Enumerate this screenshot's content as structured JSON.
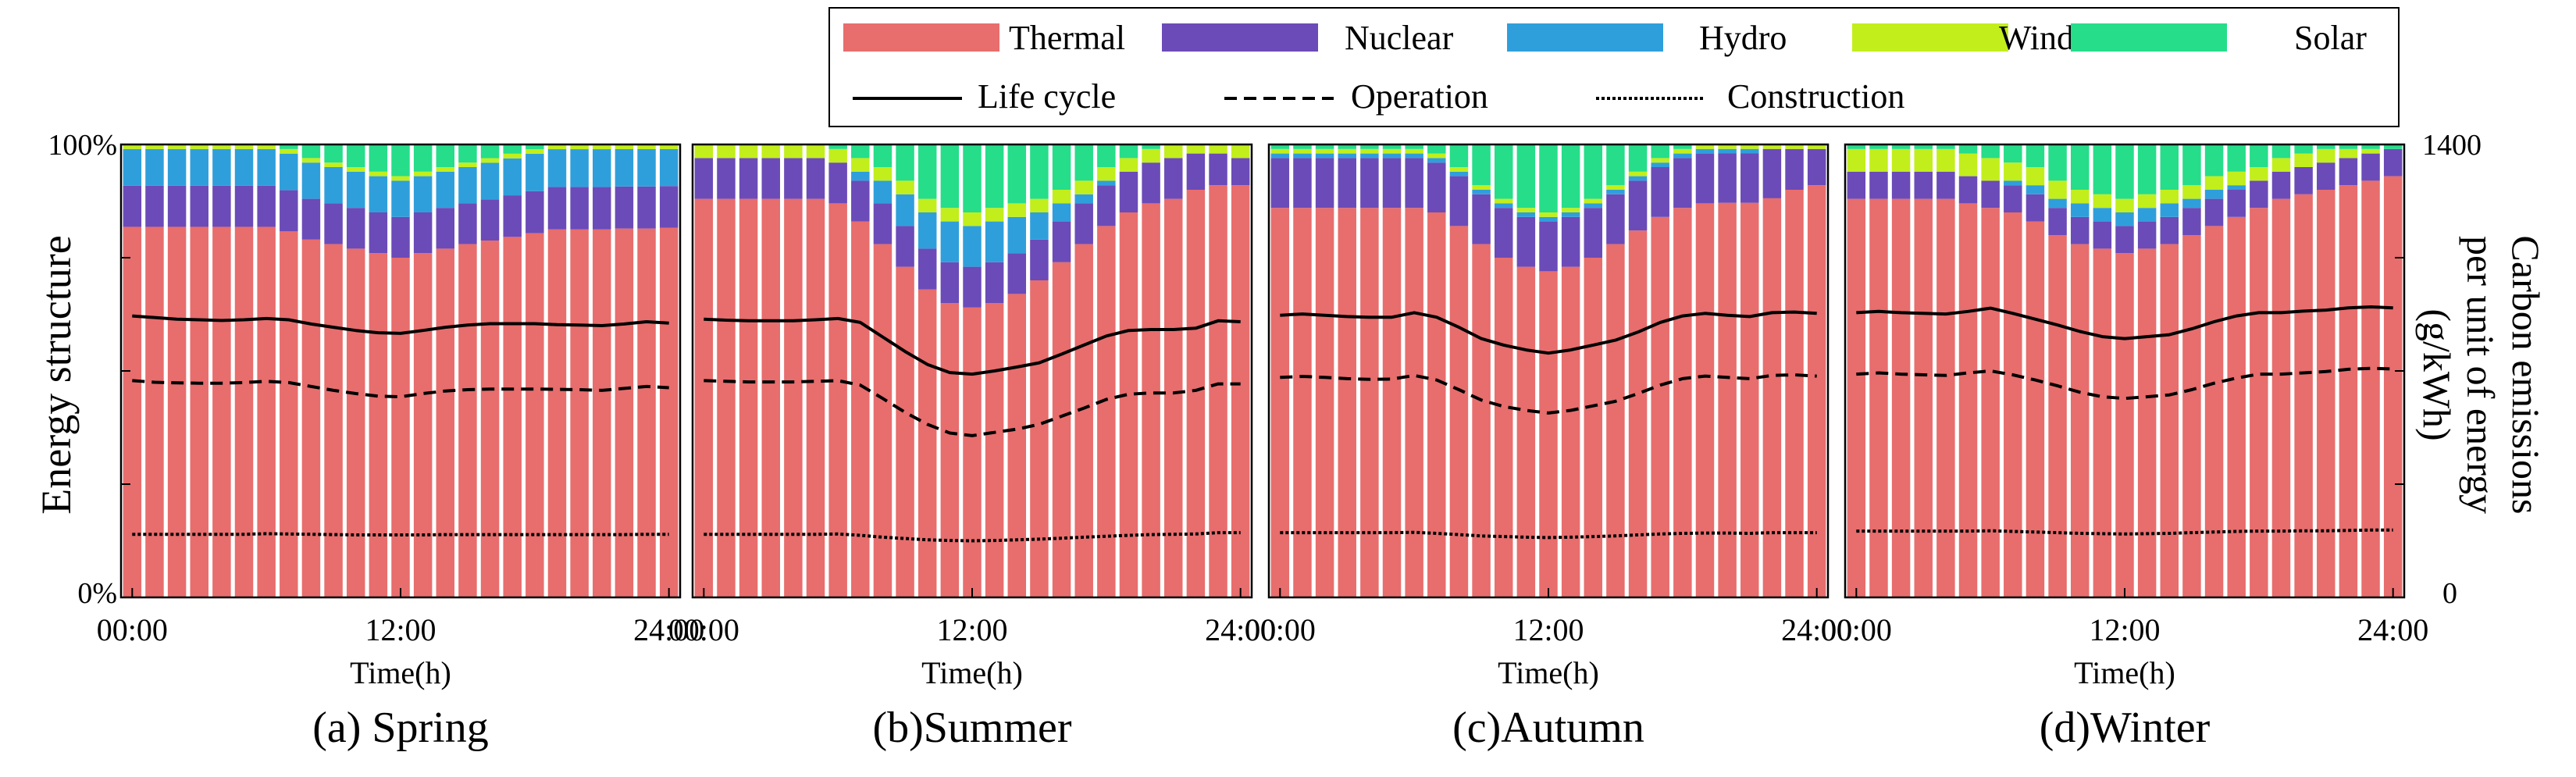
{
  "chart_data": {
    "type": "stacked-bar-with-lines",
    "y_left_label": "Energy structure",
    "y_left_ticks": [
      "100%",
      "0%"
    ],
    "y_right_label_line1": "Carbon emissions",
    "y_right_label_line2": "per unit of energy",
    "y_right_label_line3": "(g/kWh)",
    "y_right_ticks": [
      "1400",
      "0"
    ],
    "y_right_range": [
      0,
      1400
    ],
    "xlabel": "Time(h)",
    "x_tick_labels": [
      "00:00",
      "12:00",
      "24:00"
    ],
    "x_tick_hours": [
      0,
      12,
      24
    ],
    "hours": [
      0,
      1,
      2,
      3,
      4,
      5,
      6,
      7,
      8,
      9,
      10,
      11,
      12,
      13,
      14,
      15,
      16,
      17,
      18,
      19,
      20,
      21,
      22,
      23,
      24
    ],
    "legend": {
      "bars": [
        {
          "name": "Thermal",
          "color": "#e86d6d"
        },
        {
          "name": "Nuclear",
          "color": "#6b4bb8"
        },
        {
          "name": "Hydro",
          "color": "#2f9fdb"
        },
        {
          "name": "Wind",
          "color": "#c2ee1c"
        },
        {
          "name": "Solar",
          "color": "#26dd8a"
        }
      ],
      "lines": [
        {
          "name": "Life cycle",
          "style": "solid"
        },
        {
          "name": "Operation",
          "style": "dashed"
        },
        {
          "name": "Construction",
          "style": "dotted"
        }
      ]
    },
    "panels": [
      {
        "title": "(a) Spring",
        "series": {
          "Thermal": [
            81,
            81,
            81,
            81,
            81,
            81,
            81,
            80,
            79,
            78,
            77,
            76,
            75,
            76,
            77,
            78,
            78,
            78,
            78,
            78,
            78,
            78,
            79,
            79,
            80
          ],
          "Nuclear": [
            9,
            9,
            9,
            9,
            9,
            9,
            9,
            9,
            9,
            9,
            9,
            9,
            9,
            9,
            9,
            9,
            9,
            9,
            9,
            9,
            9,
            9,
            9,
            9,
            9
          ],
          "Hydro": [
            8,
            8,
            8,
            8,
            8,
            8,
            8,
            8,
            8,
            8,
            8,
            8,
            8,
            8,
            8,
            8,
            8,
            8,
            8,
            8,
            8,
            8,
            8,
            8,
            8
          ],
          "Wind": [
            1,
            1,
            1,
            1,
            1,
            1,
            1,
            1,
            1,
            1,
            1,
            1,
            1,
            1,
            1,
            1,
            1,
            1,
            1,
            1,
            1,
            1,
            1,
            1,
            1
          ],
          "Solar": [
            0,
            0,
            0,
            0,
            0,
            0,
            0,
            1,
            3,
            4,
            5,
            6,
            7,
            6,
            5,
            4,
            3,
            2,
            1,
            0,
            0,
            0,
            0,
            0,
            0
          ]
        },
        "life_cycle": [
          870,
          865,
          860,
          858,
          856,
          858,
          862,
          858,
          845,
          835,
          825,
          818,
          816,
          825,
          835,
          842,
          846,
          846,
          846,
          843,
          842,
          840,
          845,
          852,
          848
        ],
        "operation": [
          670,
          665,
          663,
          662,
          662,
          664,
          668,
          664,
          652,
          640,
          630,
          622,
          620,
          630,
          638,
          642,
          644,
          644,
          644,
          643,
          642,
          640,
          646,
          652,
          648
        ],
        "construction": [
          195,
          195,
          195,
          195,
          195,
          195,
          197,
          196,
          195,
          194,
          193,
          193,
          193,
          193,
          194,
          194,
          194,
          194,
          194,
          194,
          194,
          194,
          194,
          195,
          195
        ]
      },
      {
        "title": "(b)Summer",
        "series": {
          "Thermal": [
            88,
            88,
            88,
            88,
            88,
            88,
            87,
            83,
            78,
            73,
            68,
            65,
            64,
            65,
            67,
            70,
            74,
            78,
            82,
            85,
            87,
            88,
            90,
            91,
            91
          ],
          "Nuclear": [
            9,
            9,
            9,
            9,
            9,
            9,
            9,
            9,
            9,
            9,
            9,
            9,
            9,
            9,
            9,
            9,
            9,
            9,
            9,
            9,
            9,
            9,
            8,
            7,
            6
          ],
          "Hydro": [
            0,
            0,
            0,
            0,
            0,
            0,
            0,
            2,
            5,
            7,
            8,
            9,
            9,
            9,
            8,
            6,
            4,
            2,
            1,
            0,
            0,
            0,
            0,
            0,
            0
          ],
          "Wind": [
            3,
            3,
            3,
            3,
            3,
            3,
            3,
            3,
            3,
            3,
            3,
            3,
            3,
            3,
            3,
            3,
            3,
            3,
            3,
            3,
            3,
            3,
            2,
            2,
            3
          ],
          "Solar": [
            0,
            0,
            0,
            0,
            0,
            0,
            1,
            3,
            5,
            8,
            12,
            14,
            15,
            14,
            13,
            12,
            10,
            8,
            5,
            3,
            1,
            0,
            0,
            0,
            0
          ]
        },
        "life_cycle": [
          860,
          857,
          855,
          855,
          855,
          858,
          862,
          850,
          805,
          760,
          720,
          695,
          690,
          700,
          712,
          725,
          752,
          780,
          808,
          825,
          828,
          828,
          832,
          855,
          852
        ],
        "operation": [
          670,
          668,
          666,
          666,
          666,
          668,
          670,
          656,
          615,
          572,
          535,
          508,
          500,
          510,
          520,
          535,
          560,
          585,
          612,
          628,
          632,
          632,
          640,
          660,
          660
        ],
        "construction": [
          195,
          195,
          195,
          195,
          195,
          195,
          196,
          192,
          186,
          182,
          178,
          176,
          175,
          176,
          178,
          180,
          183,
          186,
          189,
          192,
          194,
          195,
          196,
          200,
          200
        ]
      },
      {
        "title": "(c)Autumn",
        "series": {
          "Thermal": [
            86,
            86,
            86,
            86,
            86,
            86,
            86,
            85,
            82,
            78,
            75,
            73,
            72,
            73,
            75,
            78,
            81,
            84,
            86,
            87,
            88,
            88,
            89,
            90,
            91
          ],
          "Nuclear": [
            11,
            11,
            11,
            11,
            11,
            11,
            11,
            11,
            11,
            11,
            11,
            11,
            11,
            11,
            11,
            11,
            11,
            11,
            11,
            11,
            11,
            11,
            11,
            9,
            8
          ],
          "Hydro": [
            1,
            1,
            1,
            1,
            1,
            1,
            1,
            1,
            1,
            1,
            1,
            1,
            1,
            1,
            1,
            1,
            1,
            1,
            1,
            1,
            1,
            1,
            0,
            0,
            0
          ],
          "Wind": [
            1,
            1,
            1,
            1,
            1,
            1,
            1,
            1,
            1,
            1,
            1,
            1,
            1,
            1,
            1,
            1,
            1,
            1,
            1,
            1,
            1,
            1,
            1,
            1,
            1
          ],
          "Solar": [
            1,
            1,
            1,
            1,
            1,
            1,
            1,
            2,
            5,
            9,
            12,
            14,
            15,
            14,
            12,
            9,
            6,
            3,
            1,
            0,
            0,
            0,
            0,
            0,
            0
          ]
        },
        "life_cycle": [
          872,
          876,
          872,
          868,
          866,
          866,
          880,
          866,
          835,
          800,
          780,
          765,
          755,
          765,
          780,
          795,
          820,
          850,
          870,
          878,
          872,
          868,
          880,
          882,
          878
        ],
        "operation": [
          680,
          683,
          680,
          676,
          674,
          675,
          686,
          672,
          642,
          610,
          590,
          578,
          570,
          578,
          592,
          606,
          630,
          656,
          676,
          684,
          680,
          676,
          686,
          688,
          684
        ],
        "construction": [
          200,
          200,
          200,
          200,
          200,
          200,
          201,
          198,
          194,
          190,
          188,
          186,
          185,
          186,
          188,
          190,
          193,
          196,
          198,
          199,
          199,
          198,
          200,
          200,
          200
        ]
      },
      {
        "title": "(d)Winter",
        "series": {
          "Thermal": [
            88,
            88,
            88,
            88,
            88,
            87,
            86,
            85,
            83,
            80,
            78,
            77,
            76,
            77,
            78,
            80,
            82,
            84,
            86,
            88,
            89,
            90,
            91,
            92,
            93
          ],
          "Nuclear": [
            6,
            6,
            6,
            6,
            6,
            6,
            6,
            6,
            6,
            6,
            6,
            6,
            6,
            6,
            6,
            6,
            6,
            6,
            6,
            6,
            6,
            6,
            6,
            6,
            6
          ],
          "Hydro": [
            0,
            0,
            0,
            0,
            0,
            0,
            0,
            1,
            2,
            2,
            3,
            3,
            3,
            3,
            3,
            2,
            2,
            1,
            0,
            0,
            0,
            0,
            0,
            0,
            0
          ],
          "Wind": [
            5,
            5,
            5,
            5,
            5,
            5,
            5,
            4,
            4,
            4,
            3,
            3,
            3,
            3,
            3,
            3,
            3,
            3,
            3,
            3,
            3,
            3,
            2,
            1,
            0
          ],
          "Solar": [
            1,
            1,
            1,
            1,
            1,
            2,
            3,
            4,
            5,
            8,
            10,
            11,
            12,
            11,
            10,
            9,
            7,
            6,
            5,
            3,
            2,
            1,
            1,
            1,
            1
          ]
        },
        "life_cycle": [
          880,
          884,
          880,
          878,
          876,
          884,
          894,
          878,
          860,
          842,
          822,
          806,
          800,
          806,
          812,
          830,
          852,
          870,
          880,
          880,
          885,
          888,
          895,
          898,
          895
        ],
        "operation": [
          690,
          694,
          690,
          688,
          686,
          694,
          700,
          688,
          672,
          654,
          634,
          620,
          615,
          620,
          626,
          642,
          662,
          678,
          690,
          690,
          694,
          698,
          705,
          708,
          706
        ],
        "construction": [
          205,
          205,
          205,
          205,
          205,
          205,
          206,
          204,
          202,
          200,
          198,
          197,
          196,
          197,
          198,
          200,
          202,
          204,
          205,
          205,
          206,
          206,
          207,
          208,
          208
        ]
      }
    ]
  }
}
